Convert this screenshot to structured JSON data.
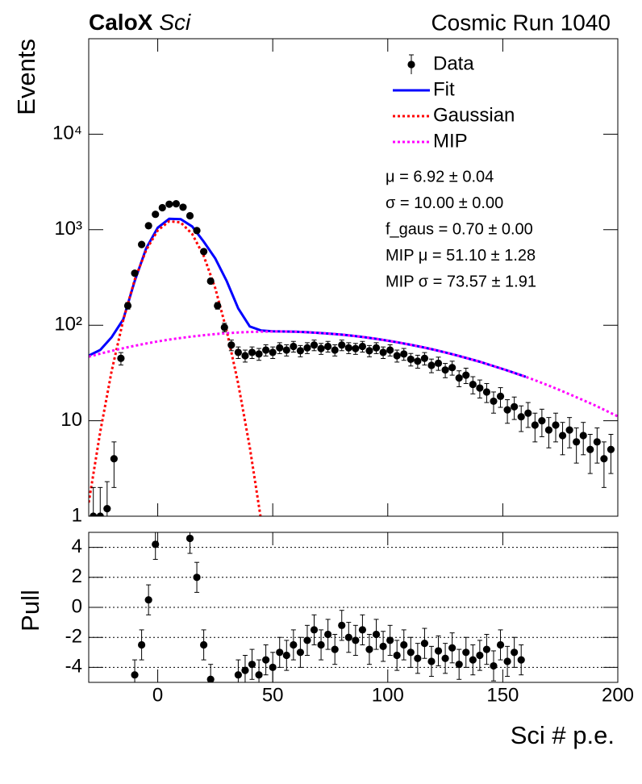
{
  "chart_data": [
    {
      "type": "scatter",
      "title": "CaloX",
      "title_suffix": "Sci",
      "run_label": "Cosmic Run 1040",
      "ylabel": "Events",
      "yscale": "log",
      "xlim": [
        -30,
        200
      ],
      "xticks": [
        0,
        50,
        100,
        150,
        200
      ],
      "xtick_labels": false,
      "ylim": [
        1,
        100000
      ],
      "yticks": [
        1,
        10,
        {
          "value": 100,
          "label": "10²"
        },
        {
          "value": 1000,
          "label": "10³"
        },
        {
          "value": 10000,
          "label": "10⁴"
        }
      ],
      "legend": "top-right",
      "annotations": [
        "μ = 6.92 ± 0.04",
        "σ = 10.00 ± 0.00",
        "f_gaus = 0.70 ± 0.00",
        "MIP μ = 51.10 ± 1.28",
        "MIP σ = 73.57 ± 1.91"
      ],
      "series": [
        {
          "name": "Data",
          "color": "#000000",
          "style": "points",
          "x": [
            -28,
            -25,
            -22,
            -19,
            -16,
            -13,
            -10,
            -7,
            -4,
            -1,
            2,
            5,
            8,
            11,
            14,
            17,
            20,
            23,
            26,
            29,
            32,
            35,
            38,
            41,
            44,
            47,
            50,
            53,
            56,
            59,
            62,
            65,
            68,
            71,
            74,
            77,
            80,
            83,
            86,
            89,
            92,
            95,
            98,
            101,
            104,
            107,
            110,
            113,
            116,
            119,
            122,
            125,
            128,
            131,
            134,
            137,
            140,
            143,
            146,
            149,
            152,
            155,
            158,
            161,
            164,
            167,
            170,
            173,
            176,
            179,
            182,
            185,
            188,
            191,
            194,
            197
          ],
          "values": [
            1,
            1,
            1.2,
            4,
            45,
            160,
            350,
            700,
            1100,
            1450,
            1700,
            1850,
            1870,
            1720,
            1400,
            980,
            590,
            290,
            160,
            95,
            62,
            52,
            48,
            52,
            50,
            55,
            52,
            58,
            55,
            60,
            54,
            58,
            62,
            57,
            60,
            55,
            62,
            58,
            57,
            60,
            54,
            58,
            52,
            55,
            48,
            50,
            44,
            42,
            45,
            38,
            40,
            34,
            36,
            28,
            30,
            24,
            22,
            20,
            16,
            18,
            13,
            14,
            11,
            12,
            9,
            10,
            8,
            9,
            7,
            8,
            6,
            7,
            5,
            6,
            4,
            5
          ],
          "errors": [
            1,
            1,
            1.1,
            2,
            6.7,
            12.6,
            18.7,
            26.5,
            33.2,
            38.1,
            41.2,
            43,
            43.2,
            41.5,
            37.4,
            31.3,
            24.3,
            17,
            12.6,
            9.7,
            7.9,
            7.2,
            6.9,
            7.2,
            7.1,
            7.4,
            7.2,
            7.6,
            7.4,
            7.7,
            7.3,
            7.6,
            7.9,
            7.5,
            7.7,
            7.4,
            7.9,
            7.6,
            7.5,
            7.7,
            7.3,
            7.6,
            7.2,
            7.4,
            6.9,
            7.1,
            6.6,
            6.5,
            6.7,
            6.2,
            6.3,
            5.8,
            6,
            5.3,
            5.5,
            4.9,
            4.7,
            4.5,
            4,
            4.2,
            3.6,
            3.7,
            3.3,
            3.5,
            3,
            3.2,
            2.8,
            3,
            2.6,
            2.8,
            2.4,
            2.6,
            2.2,
            2.4,
            2,
            2.2
          ]
        },
        {
          "name": "Fit",
          "color": "#0000ff",
          "style": "line",
          "x": [
            -30,
            -25,
            -20,
            -15,
            -10,
            -5,
            0,
            5,
            10,
            15,
            20,
            25,
            30,
            35,
            40,
            45,
            50,
            55,
            60,
            65,
            70,
            75,
            80,
            85,
            90,
            95,
            100,
            105,
            110,
            115,
            120,
            125,
            130,
            135,
            140,
            145,
            150,
            155,
            160
          ],
          "values": [
            48,
            55,
            75,
            115,
            290,
            640,
            1050,
            1300,
            1290,
            1080,
            750,
            500,
            290,
            150,
            97,
            88,
            86.5,
            85.9,
            85.4,
            84.5,
            83.2,
            81.6,
            79.6,
            77.3,
            74.8,
            72,
            68.9,
            65.7,
            62.4,
            58.9,
            55.5,
            51.9,
            48.3,
            44.8,
            41.4,
            38,
            34.8,
            31.7,
            28.8
          ]
        },
        {
          "name": "Gaussian",
          "color": "#ff0000",
          "style": "dotted",
          "x": [
            -30,
            -25,
            -20,
            -15,
            -10,
            -5,
            0,
            5,
            10,
            15,
            20,
            25,
            30,
            35,
            40,
            45
          ],
          "values": [
            1.39,
            7.66,
            33.4,
            113,
            299,
            614,
            984,
            1227,
            1192,
            902,
            532,
            244,
            87.4,
            24.3,
            5.27,
            0.89
          ]
        },
        {
          "name": "MIP",
          "color": "#ff00ff",
          "style": "dotted",
          "x": [
            -30,
            -25,
            -20,
            -15,
            -10,
            -5,
            0,
            5,
            10,
            15,
            20,
            25,
            30,
            35,
            40,
            45,
            50,
            55,
            60,
            65,
            70,
            75,
            80,
            85,
            90,
            95,
            100,
            105,
            110,
            115,
            120,
            125,
            130,
            135,
            140,
            145,
            150,
            155,
            160,
            165,
            170,
            175,
            180,
            185,
            190,
            195,
            200
          ],
          "values": [
            46.8,
            50.4,
            53.9,
            57.4,
            60.9,
            64.3,
            67.6,
            70.7,
            73.6,
            76.2,
            78.6,
            80.8,
            82.5,
            83.9,
            85,
            85.7,
            86,
            85.9,
            85.4,
            84.5,
            83.2,
            81.6,
            79.6,
            77.3,
            74.8,
            72,
            68.9,
            65.7,
            62.4,
            58.9,
            55.5,
            51.9,
            48.3,
            44.8,
            41.4,
            38,
            34.8,
            31.7,
            28.8,
            26,
            23.3,
            20.8,
            18.5,
            16.4,
            14.5,
            12.7,
            11.1
          ]
        }
      ]
    },
    {
      "type": "scatter",
      "ylabel": "Pull",
      "xlabel": "Sci # p.e.",
      "xlim": [
        -30,
        200
      ],
      "xticks": [
        0,
        50,
        100,
        150,
        200
      ],
      "ylim": [
        -5,
        5
      ],
      "yticks": [
        -4,
        -2,
        0,
        2,
        4
      ],
      "grid": true,
      "series": [
        {
          "color": "#000000",
          "style": "points",
          "x": [
            -28,
            -25,
            -22,
            -19,
            -16,
            -13,
            -10,
            -7,
            -4,
            -1,
            2,
            5,
            8,
            11,
            14,
            17,
            20,
            23,
            26,
            29,
            32,
            35,
            38,
            41,
            44,
            47,
            50,
            53,
            56,
            59,
            62,
            65,
            68,
            71,
            74,
            77,
            80,
            83,
            86,
            89,
            92,
            95,
            98,
            101,
            104,
            107,
            110,
            113,
            116,
            119,
            122,
            125,
            128,
            131,
            134,
            137,
            140,
            143,
            146,
            149,
            152,
            155,
            158,
            161,
            164,
            167,
            170,
            173,
            176,
            179,
            182,
            185,
            188,
            191,
            194,
            197
          ],
          "values": [
            null,
            null,
            null,
            null,
            null,
            null,
            -4.5,
            -2.5,
            0.5,
            4.2,
            null,
            null,
            null,
            null,
            4.6,
            2,
            -2.5,
            -4.8,
            null,
            null,
            null,
            -4.5,
            -4.2,
            -3.8,
            -4.5,
            -3.5,
            -4,
            -3,
            -3.2,
            -2.5,
            -3,
            -2.2,
            -1.5,
            -2.5,
            -1.8,
            -2.8,
            -1.2,
            -2,
            -2.2,
            -1.5,
            -2.8,
            -1.8,
            -2.6,
            -2.2,
            -3.2,
            -2.5,
            -3,
            -3.4,
            -2.4,
            -3.6,
            -2.9,
            -3.4,
            -2.7,
            -3.8,
            -3,
            -3.5,
            -3.2,
            -2.8,
            -3.9,
            -2.5,
            -3.6,
            -3,
            -3.5,
            null,
            null,
            null,
            null,
            null,
            null,
            null,
            null,
            null,
            null,
            null,
            null,
            null
          ],
          "errors": [
            null,
            null,
            null,
            null,
            null,
            null,
            1,
            1,
            1,
            1,
            null,
            null,
            null,
            null,
            1,
            1,
            1,
            1,
            null,
            null,
            null,
            1,
            1,
            1,
            1,
            1,
            1,
            1,
            1,
            1,
            1,
            1,
            1,
            1,
            1,
            1,
            1,
            1,
            1,
            1,
            1,
            1,
            1,
            1,
            1,
            1,
            1,
            1,
            1,
            1,
            1,
            1,
            1,
            1,
            1,
            1,
            1,
            1,
            1,
            1,
            1,
            1,
            1,
            null,
            null,
            null,
            null,
            null,
            null,
            null,
            null,
            null,
            null,
            null,
            null,
            null
          ]
        }
      ]
    }
  ]
}
